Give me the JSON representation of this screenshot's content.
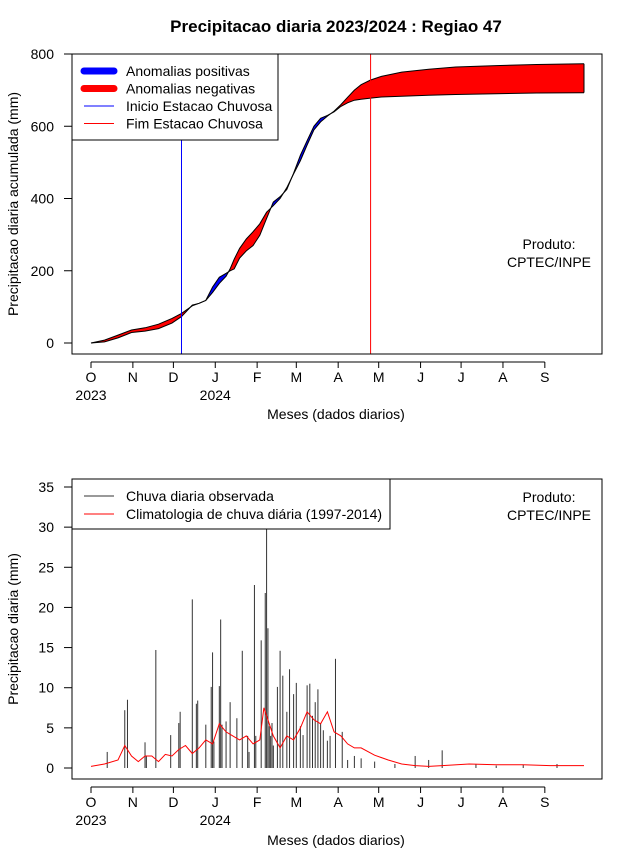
{
  "chart_data": [
    {
      "type": "area",
      "title": "Precipitacao diaria 2023/2024 : Regiao 47",
      "xlabel": "Meses (dados diarios)",
      "ylabel": "Precipitacao diaria acumulada (mm)",
      "ylim": [
        0,
        800
      ],
      "y_ticks": [
        "0",
        "200",
        "400",
        "600",
        "800"
      ],
      "month_ticks": [
        "O",
        "N",
        "D",
        "J",
        "F",
        "M",
        "A",
        "M",
        "J",
        "J",
        "A",
        "S"
      ],
      "year_labels": [
        {
          "label": "2023",
          "month_index": 0
        },
        {
          "label": "2024",
          "month_index": 3
        }
      ],
      "legend": {
        "position": "top-left",
        "items": [
          {
            "label": "Anomalias positivas",
            "color": "#0000ff",
            "kind": "thick"
          },
          {
            "label": "Anomalias negativas",
            "color": "#ff0000",
            "kind": "thick"
          },
          {
            "label": "Inicio Estacao Chuvosa",
            "color": "#0000ff",
            "kind": "thin"
          },
          {
            "label": "Fim Estacao Chuvosa",
            "color": "#ff0000",
            "kind": "thin"
          }
        ]
      },
      "annotation": [
        "Produto:",
        "CPTEC/INPE"
      ],
      "rainy_season_start_day": 67,
      "rainy_season_end_day": 207,
      "colors": {
        "positive": "#0000ff",
        "negative": "#ff0000",
        "start": "#0000ff",
        "end": "#ff0000"
      },
      "series": [
        {
          "name": "observed_accumulated",
          "x_day": [
            0,
            10,
            20,
            30,
            40,
            50,
            60,
            67,
            75,
            80,
            85,
            90,
            95,
            100,
            103,
            106,
            110,
            115,
            120,
            125,
            130,
            135,
            140,
            145,
            150,
            155,
            160,
            165,
            170,
            175,
            180,
            185,
            190,
            195,
            200,
            207,
            215,
            230,
            250,
            270,
            300,
            330,
            365
          ],
          "y": [
            0,
            3,
            14,
            29,
            33,
            40,
            55,
            73,
            105,
            110,
            118,
            155,
            182,
            193,
            200,
            205,
            235,
            255,
            270,
            298,
            345,
            390,
            405,
            425,
            470,
            520,
            560,
            600,
            622,
            630,
            640,
            655,
            665,
            672,
            675,
            678,
            681,
            683,
            686,
            688,
            690,
            692,
            693
          ]
        },
        {
          "name": "climatology_accumulated",
          "x_day": [
            0,
            10,
            20,
            30,
            40,
            50,
            60,
            67,
            75,
            80,
            85,
            90,
            95,
            100,
            103,
            106,
            110,
            115,
            120,
            125,
            130,
            135,
            140,
            145,
            150,
            155,
            160,
            165,
            170,
            175,
            180,
            185,
            190,
            195,
            200,
            207,
            215,
            230,
            250,
            270,
            300,
            330,
            365
          ],
          "y": [
            0,
            8,
            22,
            36,
            42,
            52,
            68,
            82,
            103,
            110,
            118,
            140,
            165,
            185,
            205,
            232,
            262,
            288,
            308,
            330,
            362,
            380,
            400,
            430,
            468,
            505,
            548,
            590,
            612,
            628,
            642,
            660,
            680,
            700,
            715,
            728,
            738,
            750,
            758,
            764,
            768,
            771,
            773
          ]
        }
      ]
    },
    {
      "type": "bar",
      "xlabel": "Meses (dados diarios)",
      "ylabel": "Precipitacao diaria (mm)",
      "ylim": [
        0,
        35
      ],
      "y_ticks": [
        "0",
        "5",
        "10",
        "15",
        "20",
        "25",
        "30",
        "35"
      ],
      "month_ticks": [
        "O",
        "N",
        "D",
        "J",
        "F",
        "M",
        "A",
        "M",
        "J",
        "J",
        "A",
        "S"
      ],
      "year_labels": [
        {
          "label": "2023",
          "month_index": 0
        },
        {
          "label": "2024",
          "month_index": 3
        }
      ],
      "legend": {
        "position": "top-left",
        "items": [
          {
            "label": "Chuva diaria observada",
            "color": "#333333",
            "kind": "thin"
          },
          {
            "label": "Climatologia de chuva diária (1997-2014)",
            "color": "#ff0000",
            "kind": "thin"
          }
        ]
      },
      "annotation": [
        "Produto:",
        "CPTEC/INPE"
      ],
      "colors": {
        "observed": "#333333",
        "climatology": "#ff0000"
      },
      "series": [
        {
          "name": "Chuva diaria observada",
          "x_day": [
            12,
            25,
            27,
            40,
            41,
            48,
            59,
            65,
            66,
            75,
            78,
            79,
            85,
            89,
            90,
            91,
            95,
            96,
            97,
            100,
            103,
            108,
            112,
            116,
            117,
            121,
            122,
            126,
            129,
            130,
            131,
            132,
            133,
            134,
            135,
            138,
            140,
            142,
            145,
            147,
            150,
            152,
            155,
            157,
            160,
            162,
            164,
            166,
            168,
            170,
            172,
            175,
            177,
            181,
            186,
            190,
            195,
            200,
            210,
            225,
            240,
            250,
            260,
            285,
            300,
            320,
            345
          ],
          "y": [
            2,
            7.2,
            8.5,
            3.2,
            1.5,
            14.7,
            4.1,
            5.6,
            7.0,
            21.0,
            8.0,
            8.4,
            5.4,
            10.1,
            14.4,
            3.3,
            10.2,
            18.5,
            5.4,
            5.8,
            8.2,
            6.2,
            14.6,
            4.0,
            2.0,
            22.8,
            4.0,
            15.9,
            21.8,
            31.0,
            17.4,
            5.2,
            4.0,
            5.6,
            2.8,
            10.1,
            14.6,
            11.5,
            7.0,
            12.3,
            9.2,
            10.6,
            5.2,
            4.1,
            10.3,
            10.5,
            6.5,
            8.2,
            9.8,
            5.6,
            4.7,
            3.4,
            4.0,
            13.6,
            4.5,
            1.0,
            1.5,
            1.2,
            0.8,
            0.5,
            1.5,
            1.0,
            2.2,
            0.5,
            0.3,
            0.4,
            0.5
          ]
        },
        {
          "name": "Climatologia de chuva diária (1997-2014)",
          "x_day": [
            0,
            10,
            20,
            25,
            30,
            35,
            40,
            45,
            50,
            55,
            60,
            65,
            70,
            75,
            80,
            85,
            90,
            95,
            100,
            105,
            110,
            115,
            120,
            125,
            128,
            130,
            135,
            140,
            145,
            150,
            155,
            160,
            165,
            170,
            175,
            180,
            185,
            190,
            195,
            200,
            210,
            220,
            230,
            240,
            250,
            260,
            280,
            300,
            320,
            340,
            365
          ],
          "y": [
            0.2,
            0.5,
            1.0,
            2.8,
            1.5,
            0.8,
            1.5,
            1.5,
            0.8,
            1.7,
            1.5,
            2.3,
            2.8,
            1.8,
            2.5,
            3.5,
            3.0,
            5.5,
            4.5,
            4.0,
            3.5,
            4.0,
            3.0,
            3.5,
            7.5,
            6.5,
            4.0,
            2.5,
            4.0,
            3.5,
            5.0,
            7.0,
            6.0,
            5.5,
            7.0,
            4.5,
            4.0,
            3.0,
            2.5,
            2.5,
            1.6,
            1.0,
            0.5,
            0.3,
            0.2,
            0.3,
            0.5,
            0.4,
            0.4,
            0.3,
            0.3
          ]
        }
      ]
    }
  ]
}
